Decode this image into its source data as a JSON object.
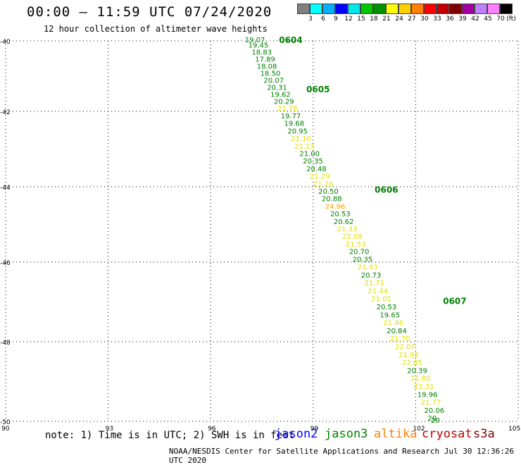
{
  "header": {
    "title": "00:00 – 11:59 UTC 07/24/2020",
    "subtitle": "12 hour collection of altimeter wave heights"
  },
  "legend": {
    "colors": [
      "#808080",
      "#00ffff",
      "#00b0ff",
      "#0000ff",
      "#00e8e8",
      "#00c800",
      "#009000",
      "#ffff00",
      "#ffd000",
      "#ff8000",
      "#ff0000",
      "#c00000",
      "#800000",
      "#a000a0",
      "#c080ff",
      "#ff80ff",
      "#000000"
    ],
    "labels": [
      "3",
      "6",
      "9",
      "12",
      "15",
      "18",
      "21",
      "24",
      "27",
      "30",
      "33",
      "36",
      "39",
      "42",
      "45",
      "70",
      "(ft)"
    ]
  },
  "note": "note: 1) Time is in UTC; 2) SWH is in feet",
  "satellites": [
    {
      "name": "jason2",
      "color": "#0000ff"
    },
    {
      "name": "jason3",
      "color": "#008000"
    },
    {
      "name": "altika",
      "color": "#ff8000"
    },
    {
      "name": "cryosat",
      "color": "#c00000"
    },
    {
      "name": "s3a",
      "color": "#800000"
    }
  ],
  "footer": "NOAA/NESDIS Center for Satellite Applications and Research   Jul 30 12:36:26 UTC 2020",
  "chart_data": {
    "type": "scatter",
    "xlim": [
      90,
      105
    ],
    "ylim": [
      -50,
      -40
    ],
    "x_ticks": [
      "90",
      "93",
      "96",
      "99",
      "102",
      "105"
    ],
    "y_ticks": [
      "-40",
      "-42",
      "-44",
      "-46",
      "-48",
      "-50"
    ],
    "grid": true,
    "time_labels": [
      {
        "text": "0604",
        "lon": 98.0,
        "lat": -40.0
      },
      {
        "text": "0605",
        "lon": 98.8,
        "lat": -41.4
      },
      {
        "text": "0606",
        "lon": 100.8,
        "lat": -44.1
      },
      {
        "text": "0607",
        "lon": 102.8,
        "lat": -47.0
      }
    ],
    "points": [
      {
        "v": "19.07",
        "lon": 97.0,
        "lat": -40.0,
        "c": "#008000"
      },
      {
        "v": "19.45",
        "lon": 97.1,
        "lat": -40.15,
        "c": "#008000"
      },
      {
        "v": "18.83",
        "lon": 97.2,
        "lat": -40.35,
        "c": "#008000"
      },
      {
        "v": "17.89",
        "lon": 97.3,
        "lat": -40.55,
        "c": "#008000"
      },
      {
        "v": "18.08",
        "lon": 97.35,
        "lat": -40.75,
        "c": "#008000"
      },
      {
        "v": "18.50",
        "lon": 97.45,
        "lat": -40.95,
        "c": "#008000"
      },
      {
        "v": "20.07",
        "lon": 97.55,
        "lat": -41.15,
        "c": "#008000"
      },
      {
        "v": "20.31",
        "lon": 97.65,
        "lat": -41.35,
        "c": "#008000"
      },
      {
        "v": "19.62",
        "lon": 97.75,
        "lat": -41.55,
        "c": "#008000"
      },
      {
        "v": "20.29",
        "lon": 97.85,
        "lat": -41.75,
        "c": "#008000"
      },
      {
        "v": "21.78",
        "lon": 97.95,
        "lat": -41.95,
        "c": "#e0e000"
      },
      {
        "v": "19.77",
        "lon": 98.05,
        "lat": -42.15,
        "c": "#008000"
      },
      {
        "v": "19.68",
        "lon": 98.15,
        "lat": -42.35,
        "c": "#008000"
      },
      {
        "v": "20.95",
        "lon": 98.25,
        "lat": -42.55,
        "c": "#008000"
      },
      {
        "v": "21.10",
        "lon": 98.35,
        "lat": -42.75,
        "c": "#e0e000"
      },
      {
        "v": "21.13",
        "lon": 98.45,
        "lat": -42.95,
        "c": "#e0e000"
      },
      {
        "v": "21.00",
        "lon": 98.6,
        "lat": -43.15,
        "c": "#008000"
      },
      {
        "v": "20.35",
        "lon": 98.7,
        "lat": -43.35,
        "c": "#008000"
      },
      {
        "v": "20.48",
        "lon": 98.8,
        "lat": -43.55,
        "c": "#008000"
      },
      {
        "v": "21.29",
        "lon": 98.9,
        "lat": -43.75,
        "c": "#e0e000"
      },
      {
        "v": "21.26",
        "lon": 99.0,
        "lat": -43.95,
        "c": "#e0e000"
      },
      {
        "v": "20.50",
        "lon": 99.15,
        "lat": -44.15,
        "c": "#008000"
      },
      {
        "v": "20.88",
        "lon": 99.25,
        "lat": -44.35,
        "c": "#008000"
      },
      {
        "v": "24.96",
        "lon": 99.35,
        "lat": -44.55,
        "c": "#ffa000"
      },
      {
        "v": "20.53",
        "lon": 99.5,
        "lat": -44.75,
        "c": "#008000"
      },
      {
        "v": "20.62",
        "lon": 99.6,
        "lat": -44.95,
        "c": "#008000"
      },
      {
        "v": "21.33",
        "lon": 99.7,
        "lat": -45.15,
        "c": "#e0e000"
      },
      {
        "v": "22.09",
        "lon": 99.85,
        "lat": -45.35,
        "c": "#e0e000"
      },
      {
        "v": "21.53",
        "lon": 99.95,
        "lat": -45.55,
        "c": "#e0e000"
      },
      {
        "v": "20.70",
        "lon": 100.05,
        "lat": -45.75,
        "c": "#008000"
      },
      {
        "v": "20.35",
        "lon": 100.15,
        "lat": -45.95,
        "c": "#008000"
      },
      {
        "v": "21.43",
        "lon": 100.3,
        "lat": -46.15,
        "c": "#e0e000"
      },
      {
        "v": "20.73",
        "lon": 100.4,
        "lat": -46.35,
        "c": "#008000"
      },
      {
        "v": "21.71",
        "lon": 100.5,
        "lat": -46.55,
        "c": "#e0e000"
      },
      {
        "v": "21.44",
        "lon": 100.6,
        "lat": -46.75,
        "c": "#e0e000"
      },
      {
        "v": "21.01",
        "lon": 100.7,
        "lat": -46.95,
        "c": "#e0e000"
      },
      {
        "v": "20.53",
        "lon": 100.85,
        "lat": -47.15,
        "c": "#008000"
      },
      {
        "v": "19.65",
        "lon": 100.95,
        "lat": -47.35,
        "c": "#008000"
      },
      {
        "v": "21.46",
        "lon": 101.05,
        "lat": -47.55,
        "c": "#e0e000"
      },
      {
        "v": "20.84",
        "lon": 101.15,
        "lat": -47.75,
        "c": "#008000"
      },
      {
        "v": "21.70",
        "lon": 101.25,
        "lat": -47.95,
        "c": "#e0e000"
      },
      {
        "v": "22.07",
        "lon": 101.4,
        "lat": -48.15,
        "c": "#e0e000"
      },
      {
        "v": "21.92",
        "lon": 101.5,
        "lat": -48.35,
        "c": "#e0e000"
      },
      {
        "v": "22.05",
        "lon": 101.6,
        "lat": -48.55,
        "c": "#e0e000"
      },
      {
        "v": "20.39",
        "lon": 101.75,
        "lat": -48.75,
        "c": "#008000"
      },
      {
        "v": "21.80",
        "lon": 101.85,
        "lat": -48.95,
        "c": "#e0e000"
      },
      {
        "v": "21.31",
        "lon": 101.95,
        "lat": -49.15,
        "c": "#e0e000"
      },
      {
        "v": "19.96",
        "lon": 102.05,
        "lat": -49.35,
        "c": "#008000"
      },
      {
        "v": "21.77",
        "lon": 102.15,
        "lat": -49.55,
        "c": "#e0e000"
      },
      {
        "v": "20.06",
        "lon": 102.25,
        "lat": -49.75,
        "c": "#008000"
      },
      {
        "v": "20.",
        "lon": 102.35,
        "lat": -49.95,
        "c": "#008000"
      },
      {
        "v": "20",
        "lon": 102.45,
        "lat": -50.0,
        "c": "#008000"
      }
    ]
  }
}
